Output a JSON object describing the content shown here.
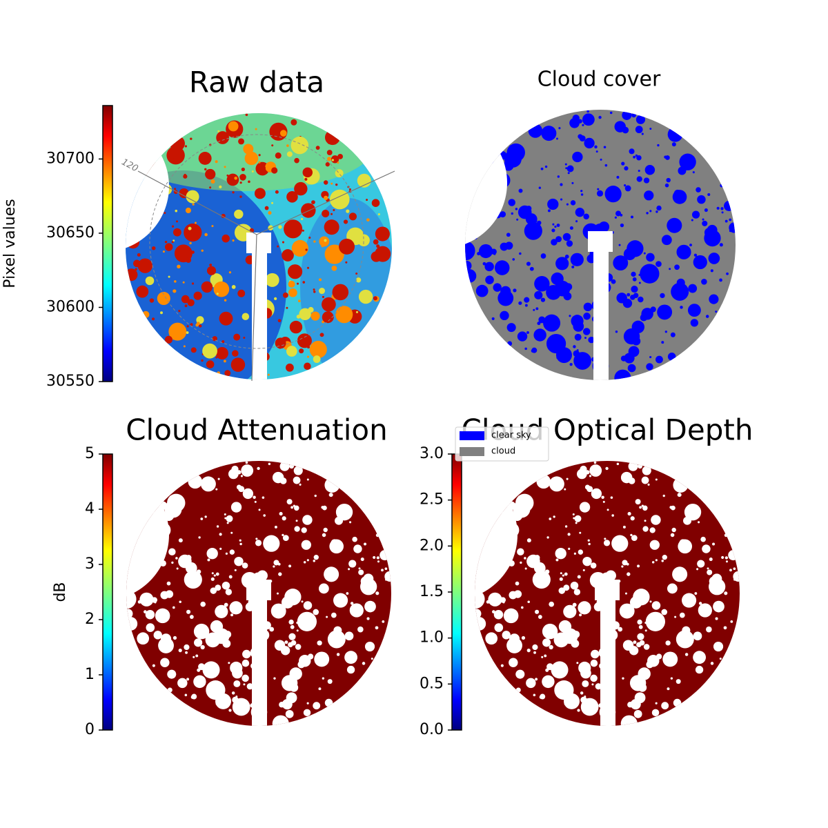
{
  "chart_data": [
    {
      "type": "image",
      "title": "Raw data",
      "colormap": "jet",
      "ylabel": "Pixel values",
      "ylim": [
        30550,
        30736
      ],
      "yticks": [
        30550,
        30600,
        30650,
        30700
      ],
      "annotation": "120"
    },
    {
      "type": "image",
      "title": "Cloud cover",
      "series": [
        {
          "name": "clear sky",
          "color": "#0000ff"
        },
        {
          "name": "cloud",
          "color": "#808080"
        }
      ]
    },
    {
      "type": "image",
      "title": "Cloud Attenuation",
      "color": "#800000",
      "colormap": "jet",
      "ylabel": "dB",
      "ylim": [
        0,
        5
      ],
      "yticks": [
        0,
        1,
        2,
        3,
        4,
        5
      ]
    },
    {
      "type": "image",
      "title": "Cloud Optical Depth",
      "color": "#800000",
      "colormap": "jet",
      "ylim": [
        0,
        3
      ],
      "yticks": [
        {
          "value": 0,
          "label": "0.0"
        },
        0.5,
        {
          "value": 1,
          "label": "1.0"
        },
        1.5,
        {
          "value": 2,
          "label": "2.0"
        },
        2.5,
        {
          "value": 3,
          "label": "3.0"
        }
      ]
    }
  ]
}
